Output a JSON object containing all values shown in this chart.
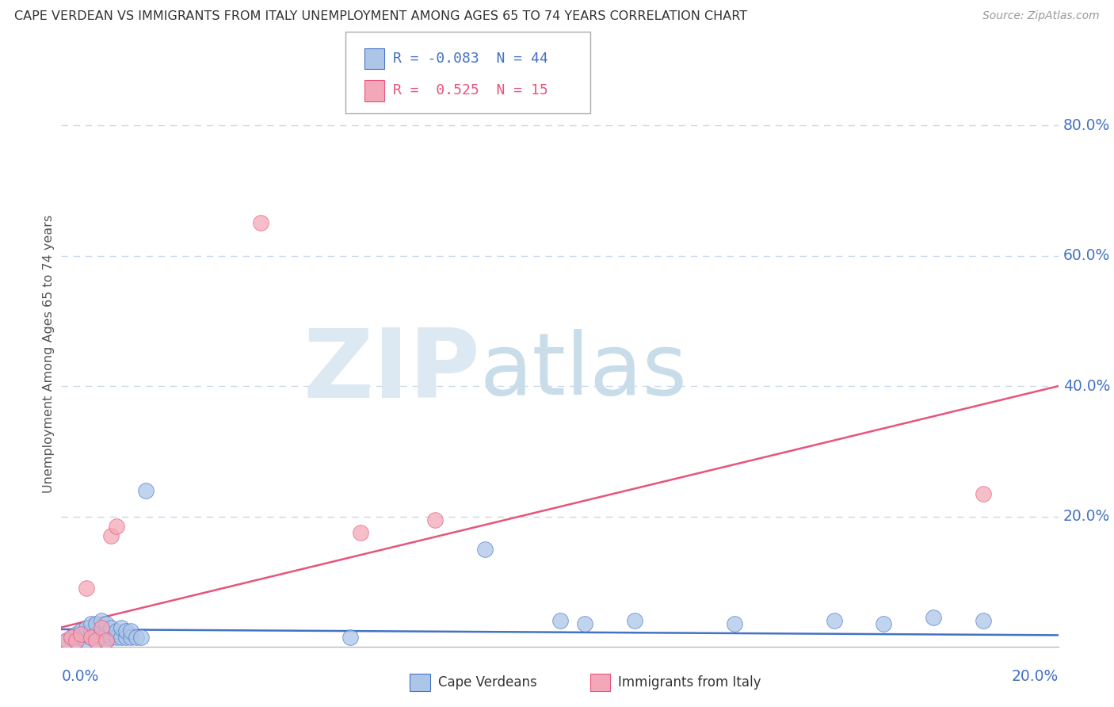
{
  "title": "CAPE VERDEAN VS IMMIGRANTS FROM ITALY UNEMPLOYMENT AMONG AGES 65 TO 74 YEARS CORRELATION CHART",
  "source": "Source: ZipAtlas.com",
  "ylabel_label": "Unemployment Among Ages 65 to 74 years",
  "xmin": 0.0,
  "xmax": 0.2,
  "ymin": 0.0,
  "ymax": 0.9,
  "ytick_vals": [
    0.2,
    0.4,
    0.6,
    0.8
  ],
  "ytick_labels": [
    "20.0%",
    "40.0%",
    "60.0%",
    "80.0%"
  ],
  "xtick_left_label": "0.0%",
  "xtick_right_label": "20.0%",
  "legend1_label": "R = -0.083  N = 44",
  "legend2_label": "R =  0.525  N = 15",
  "legend_label1": "Cape Verdeans",
  "legend_label2": "Immigrants from Italy",
  "blue_color": "#adc6e8",
  "pink_color": "#f2a8b8",
  "blue_line_color": "#4472c4",
  "pink_line_color": "#e8547a",
  "title_color": "#333333",
  "source_color": "#999999",
  "axis_tick_color": "#4472c4",
  "grid_color": "#c8d8ec",
  "watermark_zip_color": "#dce8f2",
  "watermark_atlas_color": "#c8dcea",
  "blue_x": [
    0.001,
    0.002,
    0.003,
    0.003,
    0.004,
    0.004,
    0.005,
    0.005,
    0.005,
    0.006,
    0.006,
    0.006,
    0.007,
    0.007,
    0.007,
    0.008,
    0.008,
    0.008,
    0.009,
    0.009,
    0.009,
    0.01,
    0.01,
    0.011,
    0.011,
    0.012,
    0.012,
    0.013,
    0.013,
    0.014,
    0.014,
    0.015,
    0.016,
    0.017,
    0.058,
    0.085,
    0.1,
    0.105,
    0.115,
    0.135,
    0.155,
    0.165,
    0.175,
    0.185
  ],
  "blue_y": [
    0.01,
    0.015,
    0.01,
    0.02,
    0.015,
    0.025,
    0.01,
    0.02,
    0.03,
    0.015,
    0.025,
    0.035,
    0.01,
    0.02,
    0.035,
    0.015,
    0.025,
    0.04,
    0.01,
    0.02,
    0.035,
    0.015,
    0.03,
    0.015,
    0.025,
    0.015,
    0.03,
    0.015,
    0.025,
    0.015,
    0.025,
    0.015,
    0.015,
    0.24,
    0.015,
    0.15,
    0.04,
    0.035,
    0.04,
    0.035,
    0.04,
    0.035,
    0.045,
    0.04
  ],
  "pink_x": [
    0.001,
    0.002,
    0.003,
    0.004,
    0.005,
    0.006,
    0.007,
    0.008,
    0.009,
    0.01,
    0.011,
    0.04,
    0.06,
    0.075,
    0.185
  ],
  "pink_y": [
    0.01,
    0.015,
    0.01,
    0.02,
    0.09,
    0.015,
    0.01,
    0.03,
    0.01,
    0.17,
    0.185,
    0.65,
    0.175,
    0.195,
    0.235
  ],
  "blue_trend_x": [
    0.0,
    0.2
  ],
  "blue_trend_y": [
    0.027,
    0.018
  ],
  "pink_trend_x": [
    0.0,
    0.2
  ],
  "pink_trend_y": [
    0.03,
    0.4
  ]
}
